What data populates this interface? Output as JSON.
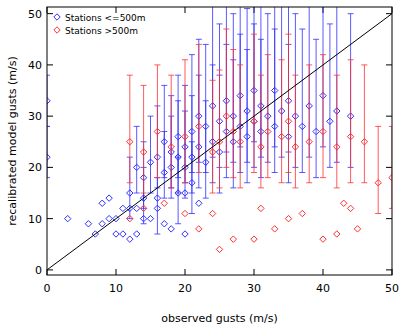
{
  "chart_data": {
    "type": "scatter",
    "x_label": "observed gusts (m/s)",
    "y_label": "recalibrated model gusts (m/s)",
    "xlim": [
      0,
      50
    ],
    "ylim": [
      -1,
      51.3
    ],
    "xticks": [
      0,
      10,
      20,
      30,
      40,
      50
    ],
    "yticks": [
      0,
      10,
      20,
      30,
      40,
      50
    ],
    "grid": false,
    "legend": "top-left",
    "series": [
      {
        "name": "Stations <=500m",
        "color": "#3030ff",
        "marker": "diamond",
        "x": [
          0,
          0,
          13,
          14,
          15,
          16,
          17,
          17,
          18,
          18,
          19,
          19,
          20,
          20,
          21,
          21,
          22,
          22,
          23,
          23,
          24,
          24,
          25,
          25,
          26,
          26,
          27,
          27,
          28,
          28,
          29,
          29,
          30,
          30,
          31,
          31,
          32,
          33,
          33,
          34,
          35,
          35,
          36,
          37,
          38,
          39,
          40,
          41,
          42,
          44,
          16,
          19,
          21,
          12,
          14,
          3,
          6,
          7,
          8,
          9,
          10,
          11,
          12,
          8,
          9,
          10,
          11,
          12,
          13,
          14,
          13,
          16,
          15,
          17,
          18,
          20,
          22,
          20
        ],
        "values": [
          22,
          33,
          20,
          18,
          21,
          22,
          19,
          25,
          20,
          23,
          22,
          26,
          20,
          24,
          22,
          27,
          24,
          30,
          21,
          28,
          25,
          32,
          23,
          29,
          27,
          33,
          25,
          30,
          28,
          34,
          26,
          31,
          29,
          35,
          27,
          32,
          30,
          28,
          35,
          31,
          26,
          33,
          30,
          28,
          32,
          27,
          34,
          29,
          31,
          30,
          12,
          15,
          17,
          15,
          14,
          10,
          9,
          7,
          9,
          10,
          10,
          12,
          12,
          13,
          14,
          7,
          7,
          6,
          7,
          10,
          12,
          14,
          10,
          9,
          8,
          7,
          13,
          15
        ],
        "lower": [
          18,
          28,
          15,
          12,
          15,
          16,
          14,
          18,
          14,
          16,
          15,
          18,
          14,
          17,
          15,
          19,
          16,
          21,
          14,
          19,
          17,
          22,
          15,
          20,
          18,
          23,
          16,
          21,
          19,
          24,
          17,
          21,
          20,
          25,
          18,
          22,
          21,
          19,
          24,
          22,
          17,
          23,
          20,
          19,
          22,
          18,
          24,
          20,
          21,
          20,
          7,
          9,
          11,
          10,
          9,
          null,
          null,
          null,
          null,
          null,
          null,
          null,
          null,
          null,
          null,
          null,
          null,
          null,
          null,
          null,
          null,
          null,
          null,
          null,
          null,
          null,
          null,
          null
        ],
        "upper": [
          28,
          38,
          28,
          25,
          30,
          32,
          27,
          36,
          30,
          34,
          33,
          38,
          31,
          36,
          34,
          42,
          38,
          45,
          33,
          44,
          40,
          52,
          38,
          48,
          44,
          53,
          41,
          50,
          46,
          53,
          43,
          51,
          48,
          53,
          45,
          53,
          50,
          47,
          53,
          52,
          44,
          53,
          50,
          47,
          53,
          45,
          53,
          48,
          52,
          50,
          18,
          22,
          25,
          22,
          20,
          null,
          null,
          null,
          null,
          null,
          null,
          null,
          null,
          null,
          null,
          null,
          null,
          null,
          null,
          null,
          null,
          null,
          null,
          null,
          null,
          null,
          null,
          null
        ]
      },
      {
        "name": "Stations >500m",
        "color": "#ff3030",
        "marker": "diamond",
        "x": [
          12,
          14,
          16,
          18,
          20,
          22,
          24,
          25,
          26,
          27,
          28,
          30,
          31,
          32,
          34,
          35,
          36,
          38,
          40,
          42,
          44,
          46,
          48,
          50,
          12,
          14,
          17,
          20,
          22,
          24,
          25,
          27,
          30,
          31,
          33,
          35,
          37,
          40,
          42,
          44,
          45,
          43
        ],
        "values": [
          25,
          23,
          27,
          24,
          26,
          28,
          23,
          25,
          30,
          27,
          25,
          29,
          24,
          27,
          26,
          29,
          24,
          25,
          27,
          24,
          26,
          25,
          17,
          18,
          10,
          12,
          13,
          11,
          8,
          11,
          4,
          6,
          6,
          12,
          8,
          10,
          11,
          6,
          7,
          12,
          8,
          13
        ],
        "lower": [
          17,
          15,
          18,
          16,
          17,
          19,
          15,
          16,
          20,
          18,
          16,
          19,
          16,
          18,
          17,
          19,
          16,
          17,
          18,
          16,
          17,
          17,
          11,
          12,
          null,
          null,
          null,
          null,
          null,
          null,
          null,
          null,
          null,
          null,
          null,
          null,
          null,
          null,
          null,
          null,
          null,
          null
        ],
        "upper": [
          38,
          36,
          40,
          38,
          41,
          44,
          37,
          39,
          47,
          43,
          40,
          46,
          38,
          42,
          41,
          46,
          38,
          40,
          42,
          38,
          41,
          40,
          28,
          28,
          null,
          null,
          null,
          null,
          null,
          null,
          null,
          null,
          null,
          null,
          null,
          null,
          null,
          null,
          null,
          null,
          null,
          null
        ]
      },
      {
        "type": "line",
        "color": "#000000",
        "x": [
          0,
          50
        ],
        "values": [
          0,
          50
        ]
      }
    ]
  }
}
